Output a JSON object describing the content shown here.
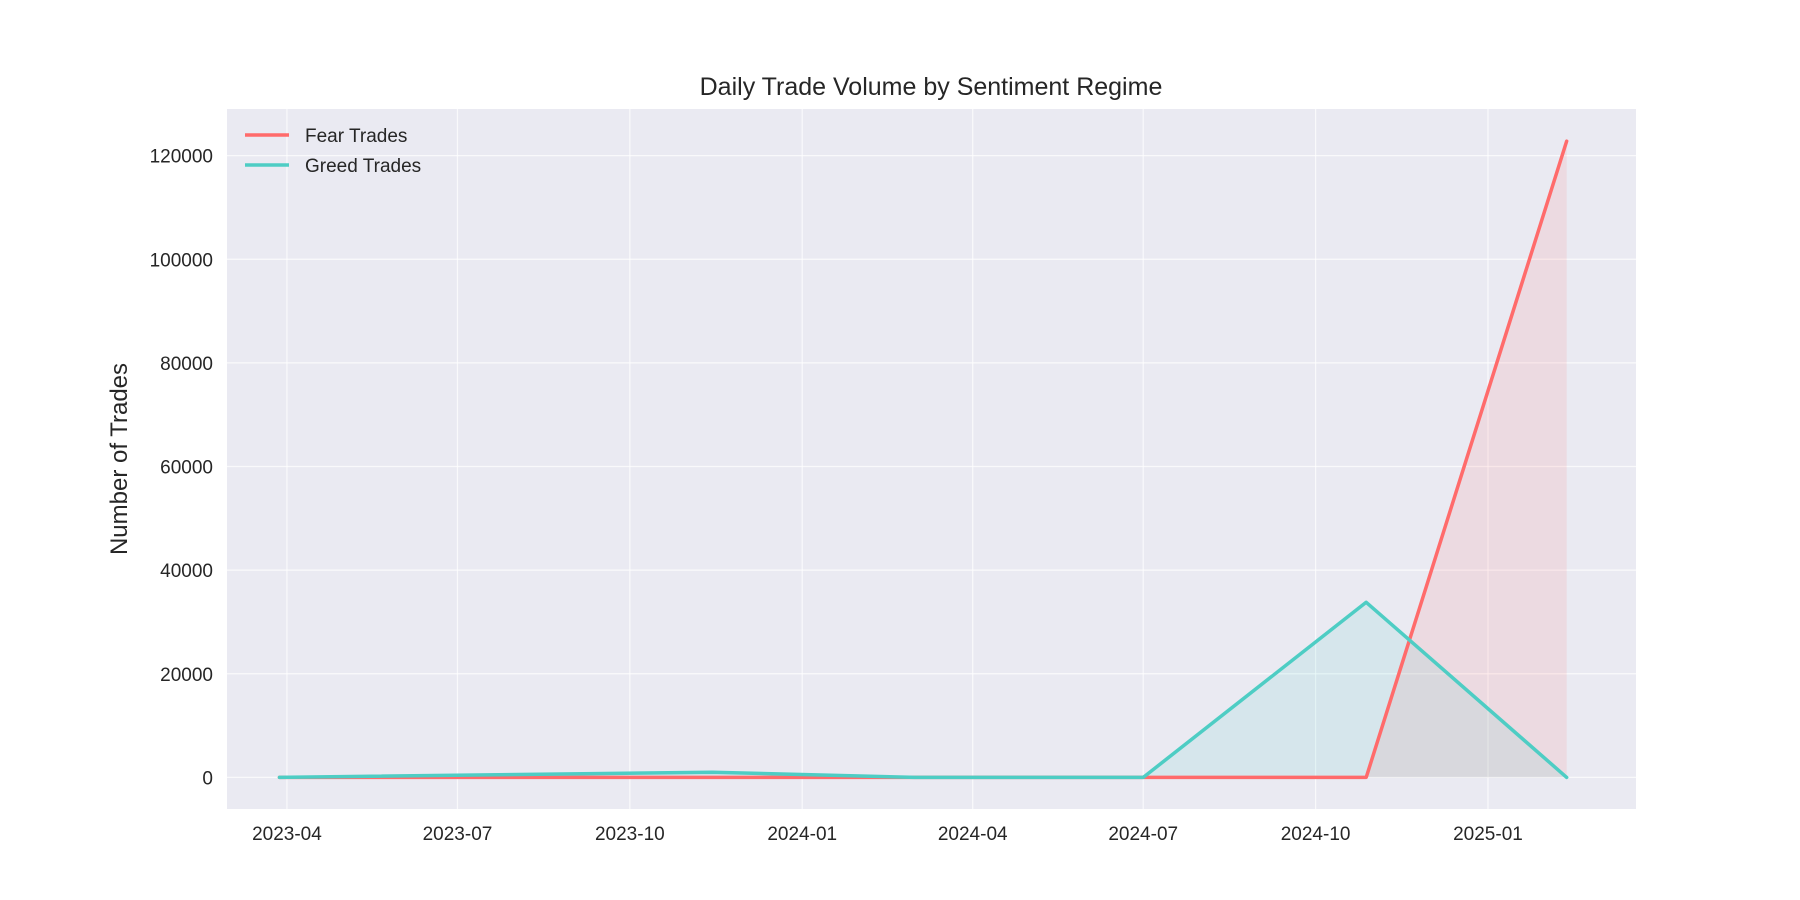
{
  "chart_data": {
    "type": "area",
    "title": "Daily Trade Volume by Sentiment Regime",
    "xlabel": "",
    "ylabel": "Number of Trades",
    "x": [
      "2023-03-28",
      "2023-11-14",
      "2024-03-01",
      "2024-07-01",
      "2024-10-28",
      "2025-02-12"
    ],
    "series": [
      {
        "name": "Fear Trades",
        "color": "#FF6B6B",
        "values": [
          0,
          0,
          0,
          0,
          0,
          122800
        ]
      },
      {
        "name": "Greed Trades",
        "color": "#4ECDC4",
        "values": [
          0,
          1000,
          0,
          0,
          33800,
          0
        ]
      }
    ],
    "xticks": [
      "2023-04",
      "2023-07",
      "2023-10",
      "2024-01",
      "2024-04",
      "2024-07",
      "2024-10",
      "2025-01"
    ],
    "xtick_dates": [
      "2023-04-01",
      "2023-07-01",
      "2023-10-01",
      "2024-01-01",
      "2024-04-01",
      "2024-07-01",
      "2024-10-01",
      "2025-01-01"
    ],
    "yticks": [
      0,
      20000,
      40000,
      60000,
      80000,
      100000,
      120000
    ],
    "xlim": [
      "2023-02-28",
      "2025-03-21"
    ],
    "ylim": [
      -6100,
      129000
    ],
    "grid": true,
    "legend_position": "top-left",
    "background_color": "#EAEAF2"
  }
}
